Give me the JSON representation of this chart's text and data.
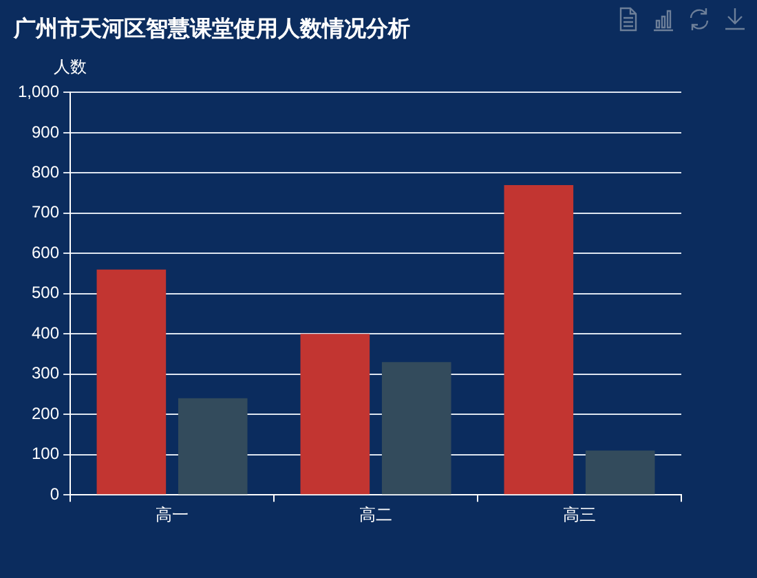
{
  "chart_data": {
    "type": "bar",
    "title": "广州市天河区智慧课堂使用人数情况分析",
    "ylabel": "人数",
    "categories": [
      "高一",
      "高二",
      "高三"
    ],
    "series": [
      {
        "color": "#c23531",
        "values": [
          560,
          400,
          770
        ]
      },
      {
        "color": "#334b5c",
        "values": [
          240,
          330,
          110
        ]
      }
    ],
    "ylim": [
      0,
      1000
    ],
    "yticks": [
      {
        "value": 0,
        "label": "0"
      },
      {
        "value": 100,
        "label": "100"
      },
      {
        "value": 200,
        "label": "200"
      },
      {
        "value": 300,
        "label": "300"
      },
      {
        "value": 400,
        "label": "400"
      },
      {
        "value": 500,
        "label": "500"
      },
      {
        "value": 600,
        "label": "600"
      },
      {
        "value": 700,
        "label": "700"
      },
      {
        "value": 800,
        "label": "800"
      },
      {
        "value": 900,
        "label": "900"
      },
      {
        "value": 1000,
        "label": "1,000"
      }
    ],
    "grid": "y",
    "legend": false
  }
}
